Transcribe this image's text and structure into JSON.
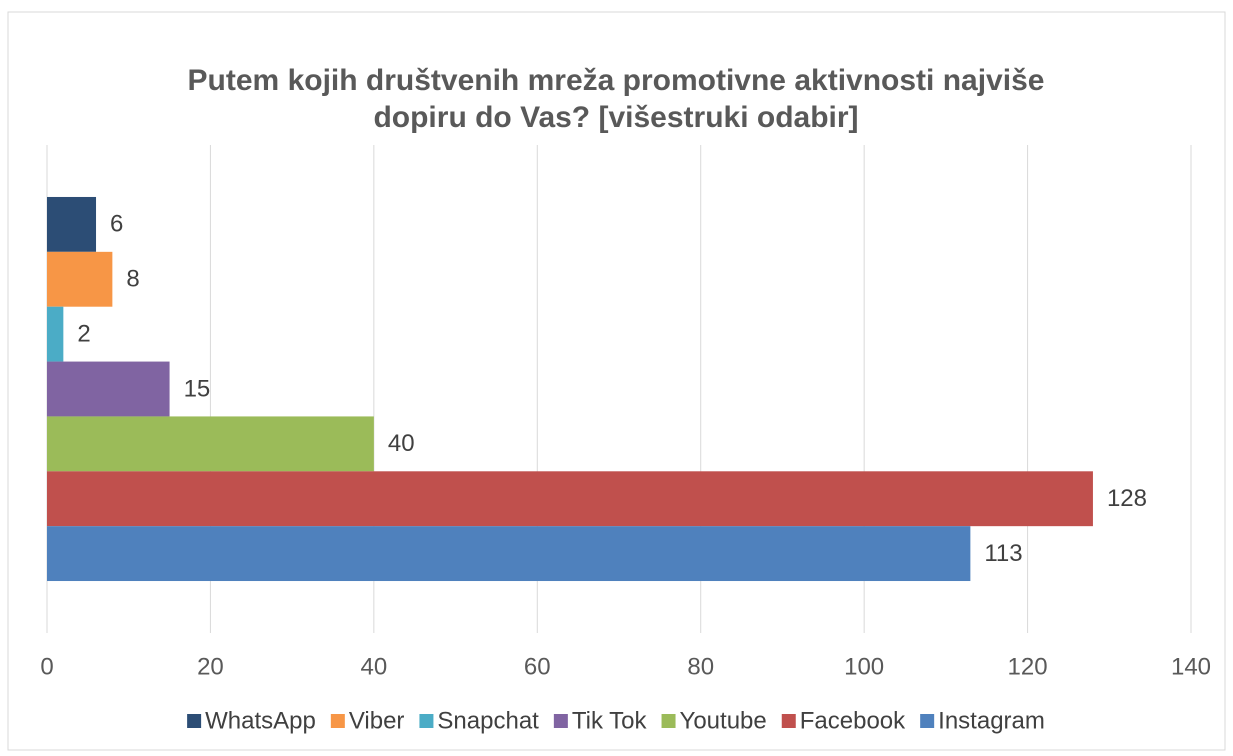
{
  "chart_data": {
    "type": "bar",
    "orientation": "horizontal",
    "title": "Putem kojih društvenih mreža promotivne aktivnosti najviše dopiru do Vas? [višestruki odabir]",
    "categories": [
      null
    ],
    "series": [
      {
        "name": "WhatsApp",
        "color": "#2c4d75",
        "values": [
          6
        ]
      },
      {
        "name": "Viber",
        "color": "#f79646",
        "values": [
          8
        ]
      },
      {
        "name": "Snapchat",
        "color": "#4bacc6",
        "values": [
          2
        ]
      },
      {
        "name": "Tik Tok",
        "color": "#8064a2",
        "values": [
          15
        ]
      },
      {
        "name": "Youtube",
        "color": "#9bbb59",
        "values": [
          40
        ]
      },
      {
        "name": "Facebook",
        "color": "#c0504d",
        "values": [
          128
        ]
      },
      {
        "name": "Instagram",
        "color": "#4f81bd",
        "values": [
          113
        ]
      }
    ],
    "xlim": [
      0,
      140
    ],
    "xticks": [
      0,
      20,
      40,
      60,
      80,
      100,
      120,
      140
    ],
    "grid": true,
    "legend": "bottom"
  }
}
